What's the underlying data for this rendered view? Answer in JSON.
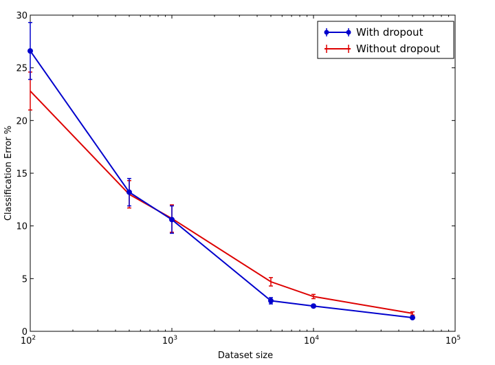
{
  "chart_data": {
    "type": "line",
    "xscale": "log",
    "xlim": [
      100,
      100000
    ],
    "ylim": [
      0,
      30
    ],
    "xlabel": "Dataset size",
    "ylabel": "Classification Error %",
    "x_ticks": [
      {
        "value": 100,
        "base": "10",
        "exp": "2"
      },
      {
        "value": 1000,
        "base": "10",
        "exp": "3"
      },
      {
        "value": 10000,
        "base": "10",
        "exp": "4"
      },
      {
        "value": 100000,
        "base": "10",
        "exp": "5"
      }
    ],
    "y_ticks": [
      0,
      5,
      10,
      15,
      20,
      25,
      30
    ],
    "legend_position": "top-right",
    "grid": false,
    "series": [
      {
        "name": "With dropout",
        "color": "#0000cc",
        "marker": "circle",
        "points": [
          {
            "x": 100,
            "y": 26.6,
            "err": 2.7
          },
          {
            "x": 500,
            "y": 13.2,
            "err": 1.3
          },
          {
            "x": 1000,
            "y": 10.6,
            "err": 1.3
          },
          {
            "x": 5000,
            "y": 2.9,
            "err": 0.3
          },
          {
            "x": 10000,
            "y": 2.4,
            "err": 0.15
          },
          {
            "x": 50000,
            "y": 1.3,
            "err": 0.1
          }
        ]
      },
      {
        "name": "Without dropout",
        "color": "#dd0000",
        "marker": "none",
        "points": [
          {
            "x": 100,
            "y": 22.8,
            "err": 1.8
          },
          {
            "x": 500,
            "y": 13.0,
            "err": 1.3
          },
          {
            "x": 1000,
            "y": 10.7,
            "err": 1.3
          },
          {
            "x": 5000,
            "y": 4.7,
            "err": 0.4
          },
          {
            "x": 10000,
            "y": 3.3,
            "err": 0.2
          },
          {
            "x": 50000,
            "y": 1.7,
            "err": 0.15
          }
        ]
      }
    ]
  }
}
